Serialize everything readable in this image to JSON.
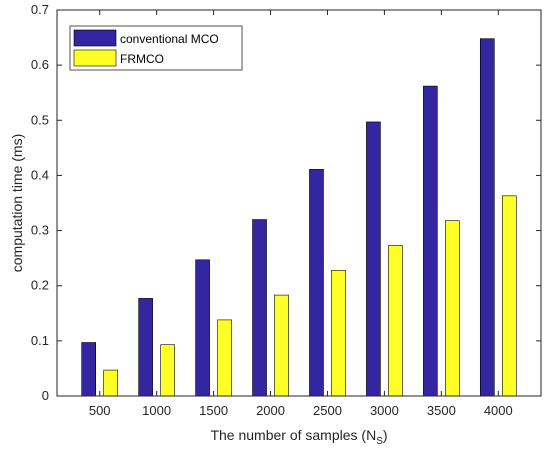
{
  "chart_data": {
    "type": "bar",
    "categories": [
      "500",
      "1000",
      "1500",
      "2000",
      "2500",
      "3000",
      "3500",
      "4000"
    ],
    "series": [
      {
        "name": "conventional MCO",
        "color": "#3326a0",
        "values": [
          0.097,
          0.177,
          0.247,
          0.32,
          0.411,
          0.497,
          0.562,
          0.648
        ]
      },
      {
        "name": "FRMCO",
        "color": "#ffff26",
        "values": [
          0.047,
          0.093,
          0.138,
          0.183,
          0.228,
          0.273,
          0.318,
          0.363
        ]
      }
    ],
    "xlabel": "The number of samples (N",
    "xlabel_sub": "S",
    "xlabel_end": ")",
    "ylabel": "computation time (ms)",
    "ylim": [
      0,
      0.7
    ],
    "yticks": [
      "0",
      "0.1",
      "0.2",
      "0.3",
      "0.4",
      "0.5",
      "0.6",
      "0.7"
    ],
    "grid": false,
    "legend_position": "top-left"
  }
}
